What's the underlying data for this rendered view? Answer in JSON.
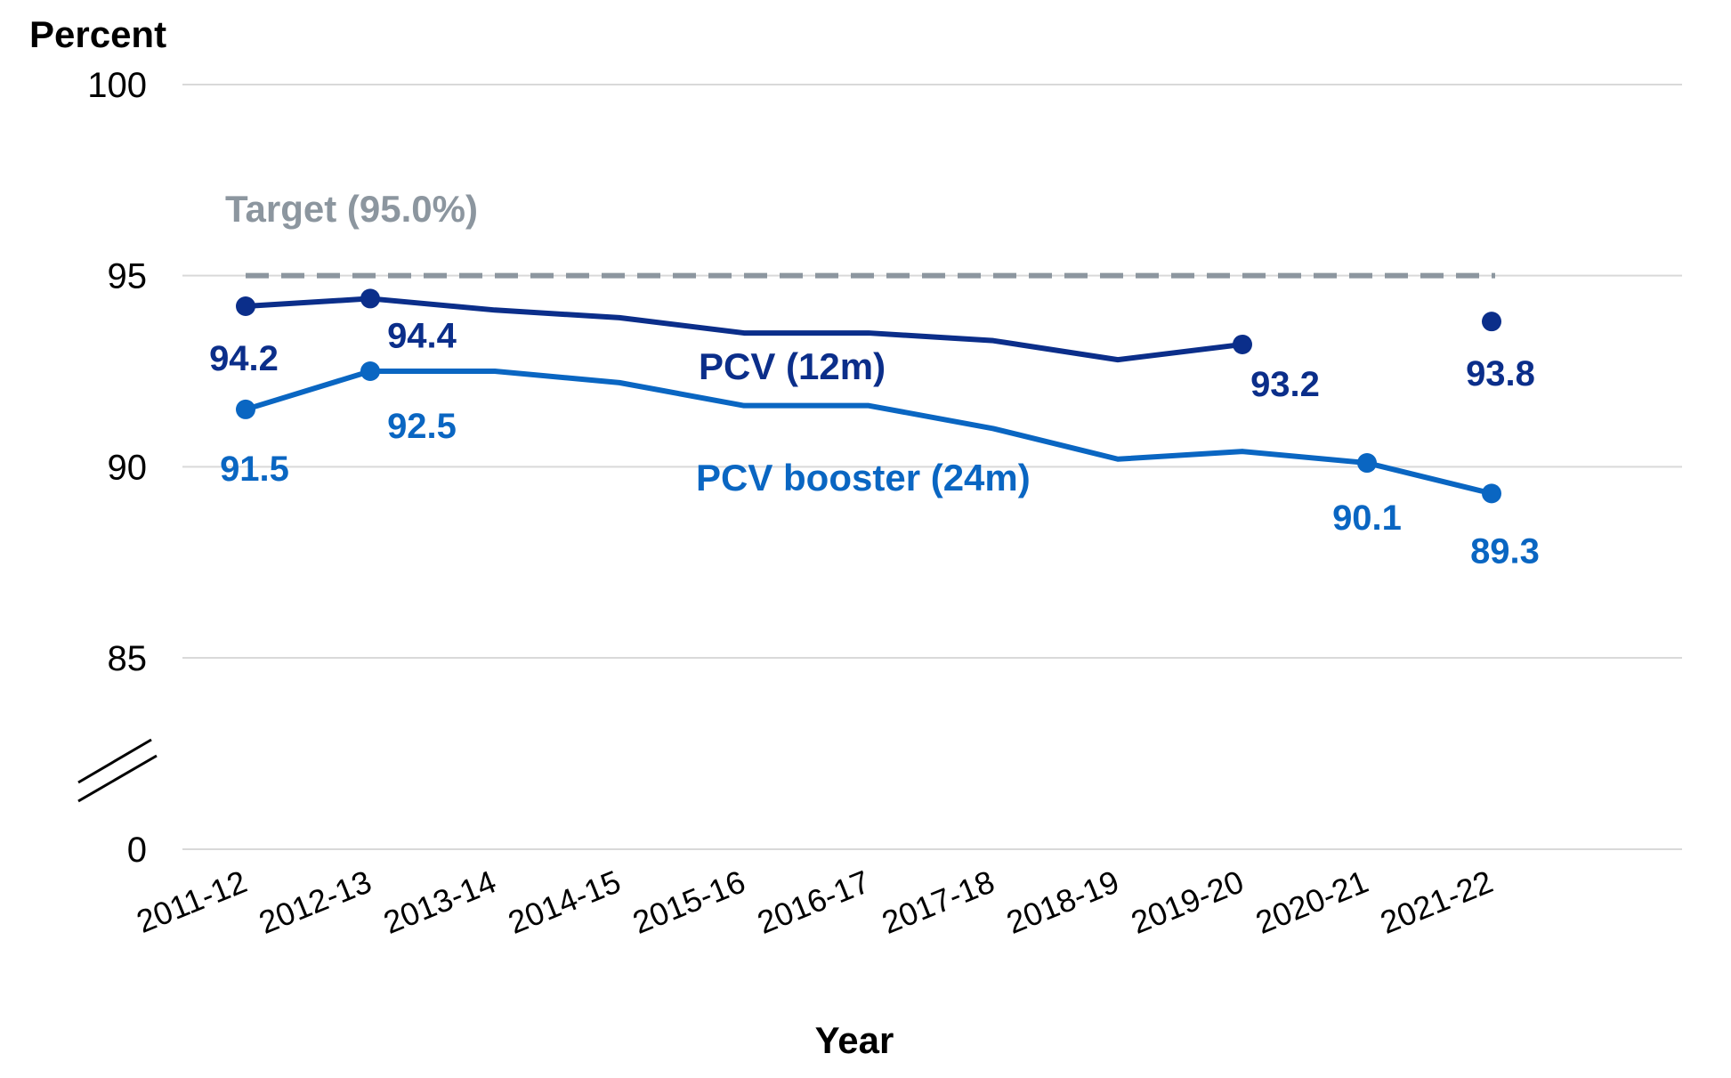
{
  "chart_data": {
    "type": "line",
    "ylabel": "Percent",
    "xlabel": "Year",
    "categories": [
      "2011-12",
      "2012-13",
      "2013-14",
      "2014-15",
      "2015-16",
      "2016-17",
      "2017-18",
      "2018-19",
      "2019-20",
      "2020-21",
      "2021-22"
    ],
    "yticks": [
      "100",
      "95",
      "90",
      "85",
      "0"
    ],
    "ylim": [
      85,
      100
    ],
    "axis_break": true,
    "grid": true,
    "target": {
      "label": "Target (95.0%)",
      "value": 95.0,
      "color": "#8c969f"
    },
    "series": [
      {
        "name": "PCV (12m)",
        "color": "#0b2e8a",
        "values": [
          94.2,
          94.4,
          94.1,
          93.9,
          93.5,
          93.5,
          93.3,
          92.8,
          93.2,
          null,
          93.8
        ],
        "labels": [
          {
            "index": 0,
            "text": "94.2"
          },
          {
            "index": 1,
            "text": "94.4"
          },
          {
            "index": 8,
            "text": "93.2"
          },
          {
            "index": 10,
            "text": "93.8"
          }
        ]
      },
      {
        "name": "PCV booster (24m)",
        "color": "#0a66c2",
        "values": [
          91.5,
          92.5,
          92.5,
          92.2,
          91.6,
          91.6,
          91.0,
          90.2,
          90.4,
          90.1,
          89.3
        ],
        "labels": [
          {
            "index": 0,
            "text": "91.5"
          },
          {
            "index": 1,
            "text": "92.5"
          },
          {
            "index": 9,
            "text": "90.1"
          },
          {
            "index": 10,
            "text": "89.3"
          }
        ]
      }
    ]
  }
}
